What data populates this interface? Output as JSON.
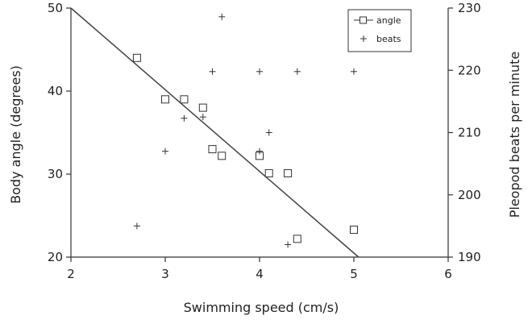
{
  "chart_data": {
    "type": "scatter",
    "xlabel": "Swimming speed (cm/s)",
    "ylabel": "Body angle (degrees)",
    "y2label": "Pleopod beats per minute",
    "xlim": [
      2,
      6
    ],
    "ylim": [
      20,
      50
    ],
    "y2lim": [
      190,
      230
    ],
    "xticks": [
      2,
      3,
      4,
      5,
      6
    ],
    "yticks": [
      20,
      30,
      40,
      50
    ],
    "y2ticks": [
      190,
      200,
      210,
      220,
      230
    ],
    "series": [
      {
        "name": "angle",
        "marker": "square",
        "axis": "left",
        "points": [
          {
            "x": 2.7,
            "y": 44
          },
          {
            "x": 3.0,
            "y": 39
          },
          {
            "x": 3.2,
            "y": 39
          },
          {
            "x": 3.4,
            "y": 38
          },
          {
            "x": 3.5,
            "y": 33
          },
          {
            "x": 3.6,
            "y": 32.2
          },
          {
            "x": 4.0,
            "y": 32.2
          },
          {
            "x": 4.1,
            "y": 30.1
          },
          {
            "x": 4.3,
            "y": 30.1
          },
          {
            "x": 4.4,
            "y": 22.2
          },
          {
            "x": 5.0,
            "y": 23.3
          }
        ]
      },
      {
        "name": "beats",
        "marker": "plus",
        "axis": "right",
        "points": [
          {
            "x": 2.7,
            "y": 195
          },
          {
            "x": 3.0,
            "y": 207
          },
          {
            "x": 3.2,
            "y": 212.3
          },
          {
            "x": 3.4,
            "y": 212.5
          },
          {
            "x": 3.5,
            "y": 219.8
          },
          {
            "x": 3.6,
            "y": 228.6
          },
          {
            "x": 4.0,
            "y": 219.8
          },
          {
            "x": 4.0,
            "y": 207
          },
          {
            "x": 4.1,
            "y": 210
          },
          {
            "x": 4.3,
            "y": 192
          },
          {
            "x": 4.4,
            "y": 219.8
          },
          {
            "x": 5.0,
            "y": 219.8
          }
        ]
      }
    ],
    "fit_line": {
      "x": [
        2,
        5.05
      ],
      "y": [
        50,
        20
      ]
    },
    "legend_position": "top-right",
    "grid": false
  }
}
